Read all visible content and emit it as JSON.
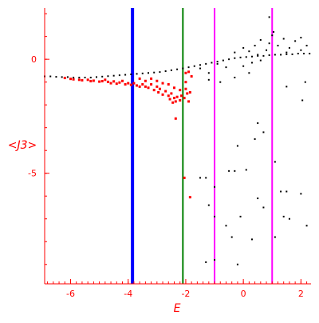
{
  "chart_data": {
    "type": "scatter",
    "xlabel": "E",
    "ylabel": "<J3>",
    "xlim": [
      -6.9,
      2.35
    ],
    "ylim": [
      -9.85,
      2.25
    ],
    "xticks": [
      -6,
      -4,
      -2,
      0,
      2
    ],
    "yticks": [
      0,
      -5
    ],
    "x_minor_step": 0.2,
    "y_minor_step": 1,
    "grid": false,
    "axis_color": "#ff0000",
    "vlines": [
      {
        "x": -3.85,
        "color": "#0000ff"
      },
      {
        "x": -2.1,
        "color": "#008000"
      },
      {
        "x": -1.0,
        "color": "#ff00ff"
      },
      {
        "x": 1.0,
        "color": "#ff00ff"
      }
    ],
    "series": [
      {
        "color": "#ff0000",
        "points": [
          [
            -6.2,
            -0.82
          ],
          [
            -6.0,
            -0.86
          ],
          [
            -5.9,
            -0.88
          ],
          [
            -5.7,
            -0.9
          ],
          [
            -5.6,
            -0.92
          ],
          [
            -5.4,
            -0.9
          ],
          [
            -5.3,
            -0.96
          ],
          [
            -5.2,
            -0.94
          ],
          [
            -5.0,
            -0.98
          ],
          [
            -4.9,
            -0.96
          ],
          [
            -4.8,
            -0.9
          ],
          [
            -4.7,
            -0.99
          ],
          [
            -4.6,
            -1.05
          ],
          [
            -4.5,
            -0.97
          ],
          [
            -4.4,
            -1.07
          ],
          [
            -4.3,
            -1.02
          ],
          [
            -4.2,
            -0.95
          ],
          [
            -4.1,
            -1.1
          ],
          [
            -4.0,
            -1.05
          ],
          [
            -3.9,
            -1.12
          ],
          [
            -3.8,
            -1.05
          ],
          [
            -3.7,
            -1.15
          ],
          [
            -3.6,
            -1.2
          ],
          [
            -3.5,
            -1.1
          ],
          [
            -3.4,
            -1.2
          ],
          [
            -3.3,
            -1.25
          ],
          [
            -3.2,
            -1.1
          ],
          [
            -3.1,
            -1.35
          ],
          [
            -3.0,
            -1.2
          ],
          [
            -2.95,
            -1.45
          ],
          [
            -2.9,
            -1.3
          ],
          [
            -2.8,
            -1.55
          ],
          [
            -2.7,
            -1.4
          ],
          [
            -2.6,
            -1.6
          ],
          [
            -2.55,
            -1.75
          ],
          [
            -2.5,
            -1.5
          ],
          [
            -2.45,
            -1.9
          ],
          [
            -2.4,
            -1.7
          ],
          [
            -2.35,
            -1.85
          ],
          [
            -2.3,
            -1.65
          ],
          [
            -2.2,
            -1.8
          ],
          [
            -2.15,
            -1.6
          ],
          [
            -2.05,
            -1.7
          ],
          [
            -2.0,
            -1.3
          ],
          [
            -1.95,
            -1.5
          ],
          [
            -1.9,
            -1.85
          ],
          [
            -1.85,
            -1.45
          ],
          [
            -3.6,
            -0.85
          ],
          [
            -3.4,
            -0.95
          ],
          [
            -3.2,
            -0.85
          ],
          [
            -3.0,
            -0.95
          ],
          [
            -2.8,
            -1.05
          ],
          [
            -2.6,
            -1.1
          ],
          [
            -2.4,
            -1.25
          ],
          [
            -2.2,
            -1.35
          ],
          [
            -2.0,
            -1.0
          ],
          [
            -2.0,
            -0.6
          ],
          [
            -1.9,
            -0.55
          ],
          [
            -1.8,
            -0.75
          ],
          [
            -2.35,
            -2.6
          ],
          [
            -2.05,
            -5.2
          ],
          [
            -1.85,
            -6.05
          ]
        ]
      },
      {
        "color": "#000000",
        "points": [
          [
            -6.9,
            -0.75
          ],
          [
            -6.7,
            -0.75
          ],
          [
            -6.5,
            -0.77
          ],
          [
            -6.3,
            -0.78
          ],
          [
            -6.1,
            -0.78
          ],
          [
            -5.9,
            -0.8
          ],
          [
            -5.7,
            -0.8
          ],
          [
            -5.5,
            -0.8
          ],
          [
            -5.3,
            -0.8
          ],
          [
            -5.1,
            -0.78
          ],
          [
            -4.9,
            -0.76
          ],
          [
            -4.7,
            -0.74
          ],
          [
            -4.5,
            -0.72
          ],
          [
            -4.3,
            -0.7
          ],
          [
            -4.1,
            -0.68
          ],
          [
            -3.9,
            -0.66
          ],
          [
            -3.7,
            -0.64
          ],
          [
            -3.5,
            -0.62
          ],
          [
            -3.3,
            -0.6
          ],
          [
            -3.1,
            -0.58
          ],
          [
            -2.9,
            -0.56
          ],
          [
            -2.7,
            -0.52
          ],
          [
            -2.5,
            -0.48
          ],
          [
            -2.3,
            -0.44
          ],
          [
            -2.1,
            -0.4
          ],
          [
            -1.9,
            -0.35
          ],
          [
            -1.7,
            -0.3
          ],
          [
            -1.5,
            -0.25
          ],
          [
            -1.3,
            -0.2
          ],
          [
            -1.1,
            -0.15
          ],
          [
            -0.9,
            -0.1
          ],
          [
            -0.7,
            -0.05
          ],
          [
            -0.5,
            0.0
          ],
          [
            -0.3,
            0.05
          ],
          [
            -0.1,
            0.08
          ],
          [
            0.1,
            0.1
          ],
          [
            0.3,
            0.12
          ],
          [
            0.5,
            0.15
          ],
          [
            0.7,
            0.15
          ],
          [
            0.9,
            0.18
          ],
          [
            1.1,
            0.2
          ],
          [
            1.3,
            0.2
          ],
          [
            1.5,
            0.22
          ],
          [
            1.7,
            0.22
          ],
          [
            1.9,
            0.25
          ],
          [
            2.1,
            0.25
          ],
          [
            2.3,
            0.25
          ],
          [
            -1.5,
            -0.4
          ],
          [
            -1.2,
            -0.6
          ],
          [
            -0.9,
            -0.2
          ],
          [
            -0.6,
            -0.35
          ],
          [
            -0.3,
            0.3
          ],
          [
            0.0,
            -0.3
          ],
          [
            0.2,
            0.35
          ],
          [
            0.4,
            0.6
          ],
          [
            0.6,
            0.85
          ],
          [
            0.8,
            0.4
          ],
          [
            1.0,
            1.05
          ],
          [
            1.2,
            0.6
          ],
          [
            1.4,
            0.9
          ],
          [
            1.6,
            0.5
          ],
          [
            1.8,
            0.8
          ],
          [
            2.0,
            0.95
          ],
          [
            2.2,
            0.6
          ],
          [
            0.0,
            0.5
          ],
          [
            0.3,
            -0.15
          ],
          [
            0.6,
            -0.05
          ],
          [
            0.9,
            0.7
          ],
          [
            1.5,
            0.3
          ],
          [
            2.0,
            0.4
          ],
          [
            0.5,
            0.2
          ],
          [
            -0.3,
            -0.8
          ],
          [
            0.2,
            -0.6
          ],
          [
            -1.2,
            -0.9
          ],
          [
            -0.8,
            -1.0
          ],
          [
            1.5,
            -1.2
          ],
          [
            1.05,
            1.2
          ],
          [
            0.9,
            1.85
          ],
          [
            2.15,
            -1.0
          ],
          [
            2.05,
            -1.8
          ],
          [
            -1.5,
            -5.2
          ],
          [
            -1.3,
            -5.2
          ],
          [
            -1.0,
            -5.6
          ],
          [
            -0.5,
            -4.9
          ],
          [
            -0.3,
            -4.9
          ],
          [
            0.1,
            -4.85
          ],
          [
            0.5,
            -2.8
          ],
          [
            0.7,
            -3.2
          ],
          [
            1.3,
            -5.8
          ],
          [
            1.5,
            -5.8
          ],
          [
            2.0,
            -5.9
          ],
          [
            1.1,
            -4.5
          ],
          [
            0.4,
            -3.5
          ],
          [
            -0.2,
            -3.8
          ],
          [
            -1.2,
            -6.4
          ],
          [
            -1.0,
            -6.9
          ],
          [
            -0.6,
            -7.3
          ],
          [
            -0.4,
            -7.8
          ],
          [
            0.5,
            -6.1
          ],
          [
            0.7,
            -6.5
          ],
          [
            1.1,
            -7.8
          ],
          [
            2.2,
            -7.3
          ],
          [
            -0.1,
            -6.9
          ],
          [
            0.3,
            -7.9
          ],
          [
            -1.3,
            -8.9
          ],
          [
            -1.0,
            -8.8
          ],
          [
            -0.2,
            -9.0
          ],
          [
            1.4,
            -6.9
          ],
          [
            1.6,
            -7.0
          ]
        ]
      }
    ]
  }
}
